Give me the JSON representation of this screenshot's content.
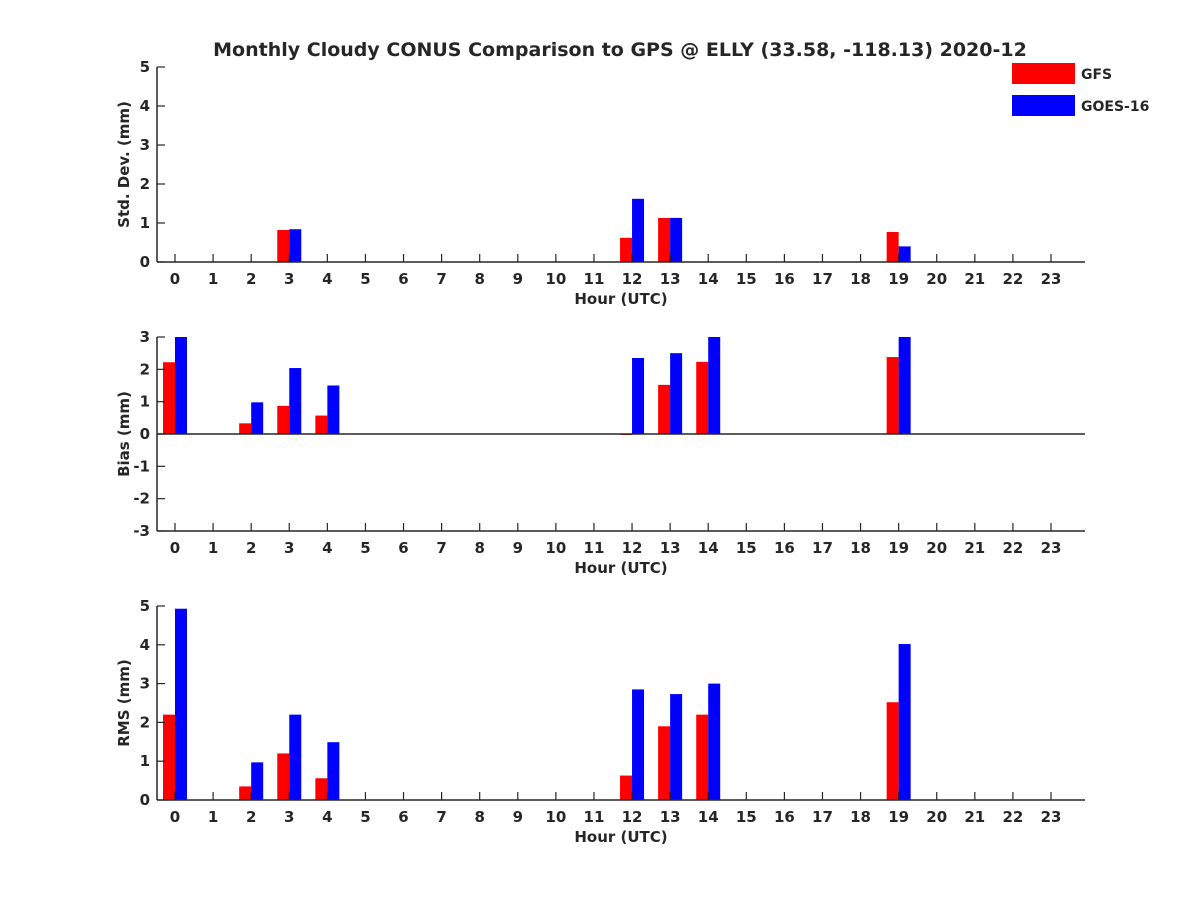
{
  "figure": {
    "title": "Monthly Cloudy CONUS Comparison to GPS @ ELLY (33.58, -118.13) 2020-12"
  },
  "legend": {
    "placement": "top-right",
    "items": [
      {
        "label": "GFS",
        "color": "#ff0000"
      },
      {
        "label": "GOES-16",
        "color": "#0000ff"
      }
    ]
  },
  "chart_data": [
    {
      "type": "bar",
      "xlabel": "Hour (UTC)",
      "ylabel": "Std. Dev. (mm)",
      "ylim": [
        0,
        5
      ],
      "yticks": [
        0,
        1,
        2,
        3,
        4,
        5
      ],
      "categories": [
        0,
        1,
        2,
        3,
        4,
        5,
        6,
        7,
        8,
        9,
        10,
        11,
        12,
        13,
        14,
        15,
        16,
        17,
        18,
        19,
        20,
        21,
        22,
        23
      ],
      "series": [
        {
          "name": "GFS",
          "color": "#ff0000",
          "values": [
            null,
            null,
            null,
            0.82,
            null,
            null,
            null,
            null,
            null,
            null,
            null,
            null,
            0.62,
            1.13,
            null,
            null,
            null,
            null,
            null,
            0.77,
            null,
            null,
            null,
            null
          ]
        },
        {
          "name": "GOES-16",
          "color": "#0000ff",
          "values": [
            null,
            null,
            null,
            0.84,
            null,
            null,
            null,
            null,
            null,
            null,
            null,
            null,
            1.62,
            1.13,
            null,
            null,
            null,
            null,
            null,
            0.4,
            null,
            null,
            null,
            null
          ]
        }
      ]
    },
    {
      "type": "bar",
      "xlabel": "Hour (UTC)",
      "ylabel": "Bias (mm)",
      "ylim": [
        -3,
        3
      ],
      "yticks": [
        -3,
        -2,
        -1,
        0,
        1,
        2,
        3
      ],
      "categories": [
        0,
        1,
        2,
        3,
        4,
        5,
        6,
        7,
        8,
        9,
        10,
        11,
        12,
        13,
        14,
        15,
        16,
        17,
        18,
        19,
        20,
        21,
        22,
        23
      ],
      "series": [
        {
          "name": "GFS",
          "color": "#ff0000",
          "values": [
            2.22,
            null,
            0.33,
            0.87,
            0.57,
            null,
            null,
            null,
            null,
            null,
            null,
            null,
            -0.03,
            1.52,
            2.23,
            null,
            null,
            null,
            null,
            2.38,
            null,
            null,
            null,
            null
          ]
        },
        {
          "name": "GOES-16",
          "color": "#0000ff",
          "values": [
            3.0,
            null,
            0.98,
            2.04,
            1.5,
            null,
            null,
            null,
            null,
            null,
            null,
            null,
            2.35,
            2.5,
            3.0,
            null,
            null,
            null,
            null,
            3.0,
            null,
            null,
            null,
            null
          ]
        }
      ]
    },
    {
      "type": "bar",
      "xlabel": "Hour (UTC)",
      "ylabel": "RMS (mm)",
      "ylim": [
        0,
        5
      ],
      "yticks": [
        0,
        1,
        2,
        3,
        4,
        5
      ],
      "categories": [
        0,
        1,
        2,
        3,
        4,
        5,
        6,
        7,
        8,
        9,
        10,
        11,
        12,
        13,
        14,
        15,
        16,
        17,
        18,
        19,
        20,
        21,
        22,
        23
      ],
      "series": [
        {
          "name": "GFS",
          "color": "#ff0000",
          "values": [
            2.2,
            null,
            0.35,
            1.2,
            0.56,
            null,
            null,
            null,
            null,
            null,
            null,
            null,
            0.63,
            1.9,
            2.2,
            null,
            null,
            null,
            null,
            2.52,
            null,
            null,
            null,
            null
          ]
        },
        {
          "name": "GOES-16",
          "color": "#0000ff",
          "values": [
            4.93,
            null,
            0.97,
            2.2,
            1.49,
            null,
            null,
            null,
            null,
            null,
            null,
            null,
            2.85,
            2.73,
            3.0,
            null,
            null,
            null,
            null,
            4.02,
            null,
            null,
            null,
            null
          ]
        }
      ]
    }
  ]
}
